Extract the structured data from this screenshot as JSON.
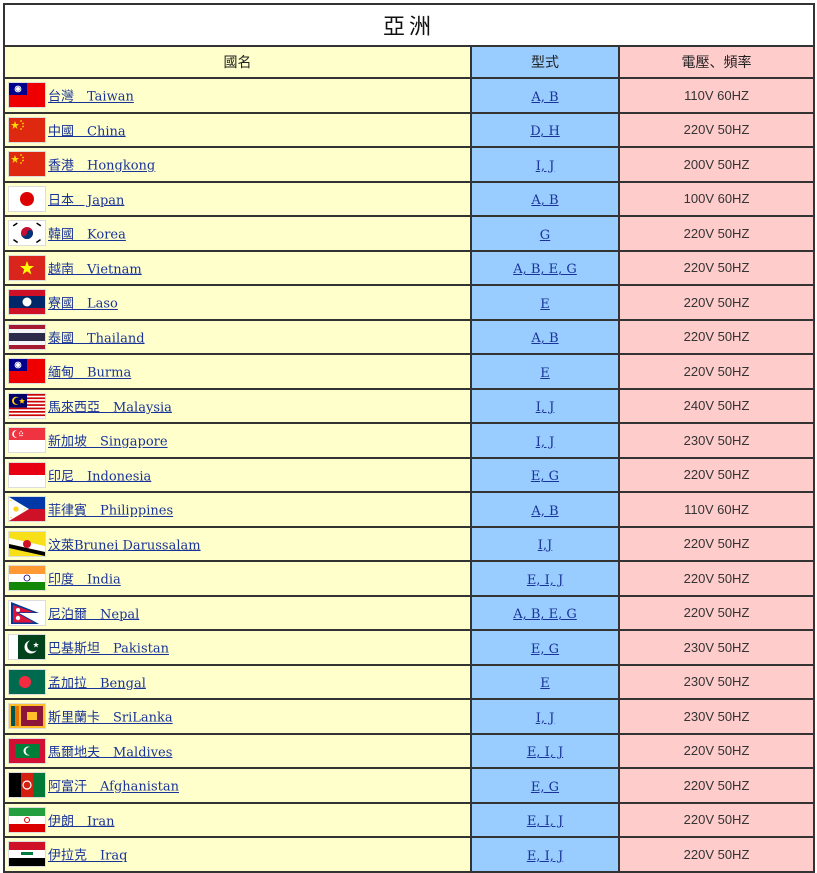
{
  "title": "亞洲",
  "headers": {
    "name": "國名",
    "type": "型式",
    "voltage": "電壓、頻率"
  },
  "rows": [
    {
      "name": "台灣　Taiwan",
      "type": "A, B",
      "voltage": "110V 60HZ",
      "flag": "taiwan"
    },
    {
      "name": "中國　China",
      "type": "D, H",
      "voltage": "220V 50HZ",
      "flag": "china"
    },
    {
      "name": "香港　Hongkong",
      "type": "I, J",
      "voltage": "200V 50HZ",
      "flag": "china"
    },
    {
      "name": "日本　Japan",
      "type": "A, B",
      "voltage": "100V 60HZ",
      "flag": "japan"
    },
    {
      "name": "韓國　Korea",
      "type": "G",
      "voltage": "220V 50HZ",
      "flag": "korea"
    },
    {
      "name": "越南　Vietnam",
      "type": "A, B, E, G",
      "voltage": "220V 50HZ",
      "flag": "vietnam"
    },
    {
      "name": "寮國　Laso",
      "type": "E",
      "voltage": "220V 50HZ",
      "flag": "laos"
    },
    {
      "name": "泰國　Thailand",
      "type": "A, B",
      "voltage": "220V 50HZ",
      "flag": "thailand"
    },
    {
      "name": "緬甸　Burma",
      "type": "E",
      "voltage": "220V 50HZ",
      "flag": "taiwan"
    },
    {
      "name": "馬來西亞　Malaysia",
      "type": "I, J",
      "voltage": "240V 50HZ",
      "flag": "malaysia"
    },
    {
      "name": "新加坡　Singapore",
      "type": "I, J",
      "voltage": "230V 50HZ",
      "flag": "singapore"
    },
    {
      "name": "印尼　Indonesia",
      "type": "E, G",
      "voltage": "220V 50HZ",
      "flag": "indonesia"
    },
    {
      "name": "菲律賓　Philippines",
      "type": "A, B",
      "voltage": "110V 60HZ",
      "flag": "philippines"
    },
    {
      "name": "汶萊Brunei Darussalam",
      "type": "I,J",
      "voltage": "220V 50HZ",
      "flag": "brunei"
    },
    {
      "name": "印度　India",
      "type": "E, I, J",
      "voltage": "220V 50HZ",
      "flag": "india"
    },
    {
      "name": "尼泊爾　Nepal",
      "type": "A, B, E, G",
      "voltage": "220V 50HZ",
      "flag": "nepal"
    },
    {
      "name": "巴基斯坦　Pakistan",
      "type": "E, G",
      "voltage": "230V 50HZ",
      "flag": "pakistan"
    },
    {
      "name": "孟加拉　Bengal",
      "type": "E",
      "voltage": "230V 50HZ",
      "flag": "bangladesh"
    },
    {
      "name": "斯里蘭卡　SriLanka",
      "type": "I, J",
      "voltage": "230V 50HZ",
      "flag": "srilanka"
    },
    {
      "name": "馬爾地夫　Maldives",
      "type": "E, I, J",
      "voltage": "220V 50HZ",
      "flag": "maldives"
    },
    {
      "name": "阿富汗　Afghanistan",
      "type": "E, G",
      "voltage": "220V 50HZ",
      "flag": "afghanistan"
    },
    {
      "name": "伊朗　Iran",
      "type": "E, I, J",
      "voltage": "220V 50HZ",
      "flag": "iran"
    },
    {
      "name": "伊拉克　Iraq",
      "type": "E, I, J",
      "voltage": "220V 50HZ",
      "flag": "iraq"
    }
  ]
}
